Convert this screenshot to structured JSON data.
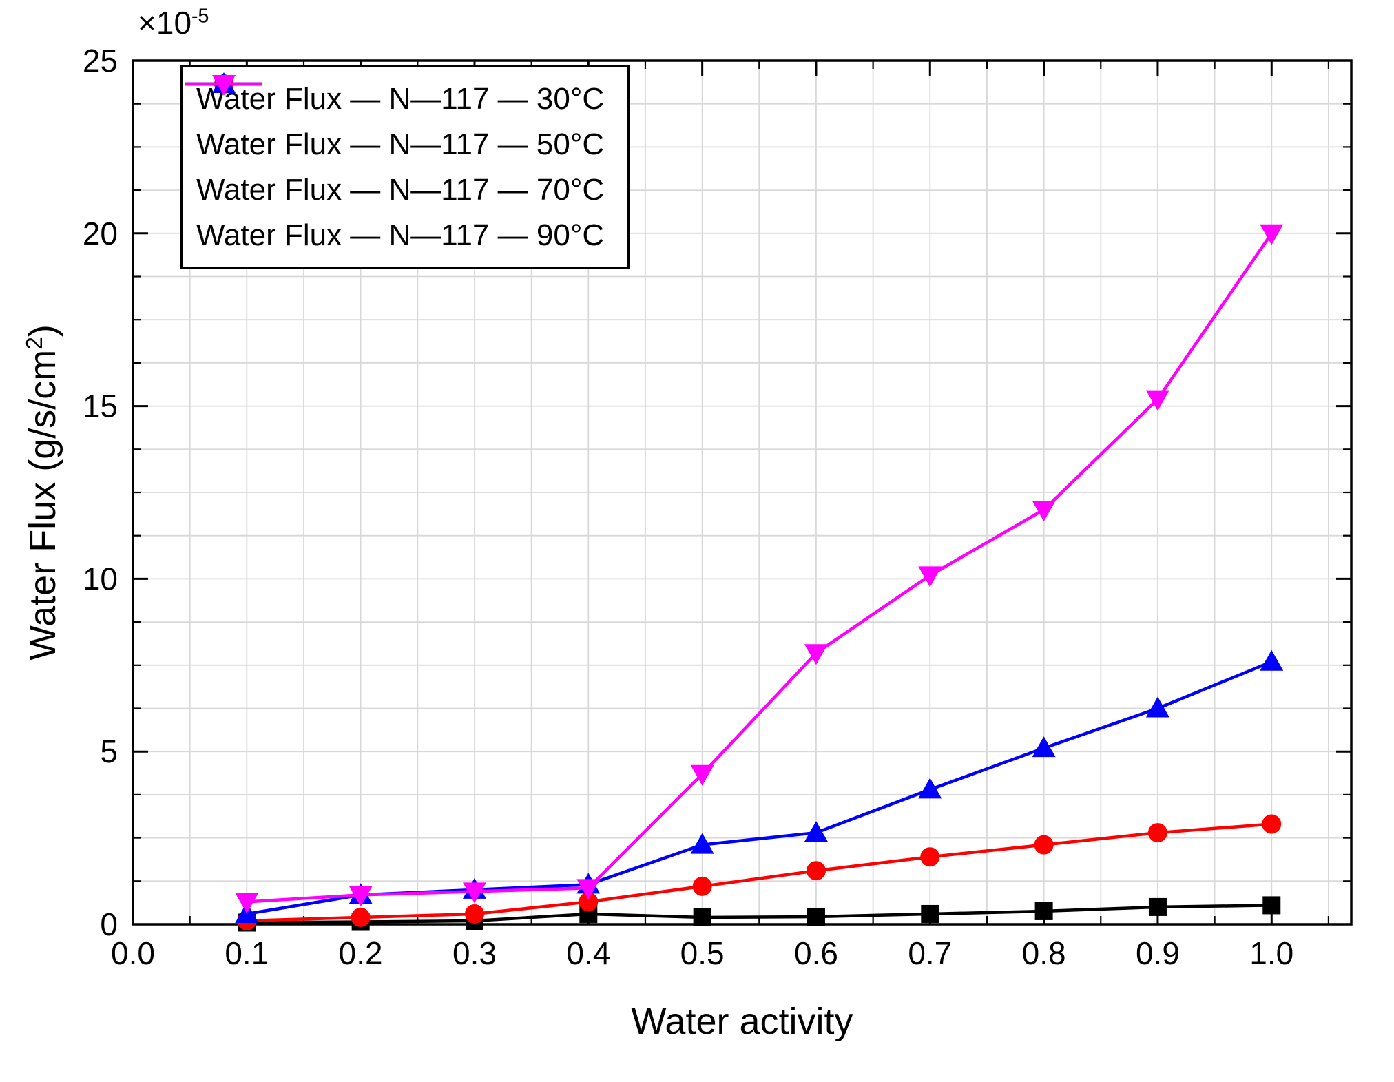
{
  "chart_data": {
    "type": "line",
    "title": "",
    "xlabel": "Water activity",
    "ylabel": {
      "prefix": "Water Flux (g/s/cm",
      "sup": "2",
      "suffix": ")"
    },
    "y_multiplier": {
      "text": "×10",
      "sup": "-5"
    },
    "xlim": [
      0.0,
      1.07
    ],
    "ylim": [
      0,
      25
    ],
    "xtick_values": [
      0.0,
      0.1,
      0.2,
      0.3,
      0.4,
      0.5,
      0.6,
      0.7,
      0.8,
      0.9,
      1.0
    ],
    "xtick_labels": [
      "0.0",
      "0.1",
      "0.2",
      "0.3",
      "0.4",
      "0.5",
      "0.6",
      "0.7",
      "0.8",
      "0.9",
      "1.0"
    ],
    "ytick_values": [
      0,
      5,
      10,
      15,
      20,
      25
    ],
    "ytick_labels": [
      "0",
      "5",
      "10",
      "15",
      "20",
      "25"
    ],
    "x_minor_step": 0.05,
    "y_minor_step": 1.25,
    "grid": true,
    "legend_position": "top-left",
    "x": [
      0.1,
      0.2,
      0.3,
      0.4,
      0.5,
      0.6,
      0.7,
      0.8,
      0.9,
      1.0
    ],
    "series": [
      {
        "name": "Water Flux — N—117 — 30°C",
        "color": "#000000",
        "marker": "square",
        "values": [
          0.05,
          0.07,
          0.1,
          0.3,
          0.2,
          0.22,
          0.3,
          0.38,
          0.5,
          0.55
        ]
      },
      {
        "name": "Water Flux — N—117 — 50°C",
        "color": "#ff0000",
        "marker": "circle",
        "values": [
          0.1,
          0.2,
          0.3,
          0.65,
          1.1,
          1.55,
          1.95,
          2.3,
          2.65,
          2.9
        ]
      },
      {
        "name": "Water Flux — N—117 — 70°C",
        "color": "#0000ff",
        "marker": "triangle-up",
        "values": [
          0.3,
          0.85,
          1.0,
          1.15,
          2.3,
          2.65,
          3.9,
          5.1,
          6.25,
          7.6
        ]
      },
      {
        "name": "Water Flux — N—117 — 90°C",
        "color": "#ff00ff",
        "marker": "triangle-down",
        "values": [
          0.65,
          0.85,
          0.95,
          1.05,
          4.35,
          7.85,
          10.1,
          12.0,
          15.2,
          20.0
        ]
      }
    ]
  }
}
